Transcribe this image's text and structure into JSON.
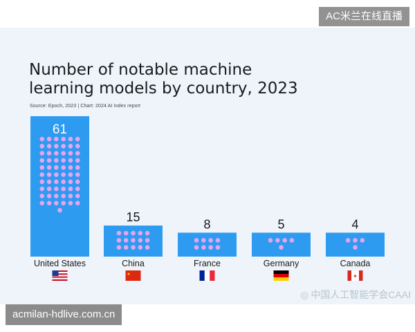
{
  "overlay": {
    "top_label": "AC米兰在线直播",
    "bottom_label": "acmilan-hdlive.com.cn",
    "watermark": "中国人工智能学会CAAI"
  },
  "chart_data": {
    "type": "bar",
    "title_lines": [
      "Number of notable machine",
      "learning models by country, 2023"
    ],
    "source": "Source: Epoch, 2023 | Chart: 2024 AI Index report",
    "categories": [
      "United States",
      "China",
      "France",
      "Germany",
      "Canada"
    ],
    "values": [
      61,
      15,
      8,
      5,
      4
    ],
    "flags": [
      "us-flag-icon",
      "china-flag-icon",
      "france-flag-icon",
      "germany-flag-icon",
      "canada-flag-icon"
    ],
    "ylim": [
      0,
      61
    ],
    "bar_color": "#2d9bf0",
    "dot_color": "#e8a4ee",
    "grid": false,
    "legend": "none"
  }
}
